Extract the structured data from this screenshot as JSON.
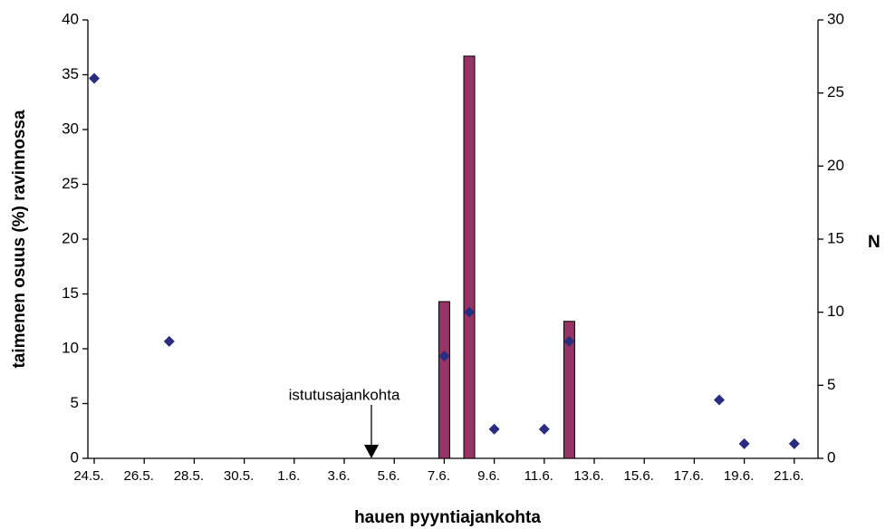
{
  "chart_data": {
    "type": "bar",
    "categories": [
      "24.5.",
      null,
      "26.5.",
      null,
      "28.5.",
      null,
      "30.5.",
      null,
      "1.6.",
      null,
      "3.6.",
      null,
      "5.6.",
      null,
      "7.6.",
      null,
      "9.6.",
      null,
      "11.6.",
      null,
      "13.6.",
      null,
      "15.6.",
      null,
      "17.6.",
      null,
      "19.6.",
      null,
      "21.6."
    ],
    "series": [
      {
        "type": "bar",
        "color": "#993366",
        "values": [
          null,
          null,
          null,
          null,
          null,
          null,
          null,
          null,
          null,
          null,
          null,
          null,
          null,
          null,
          14.3,
          36.7,
          null,
          null,
          null,
          12.5,
          null,
          null,
          null,
          null,
          null,
          null,
          null,
          null,
          null
        ]
      },
      {
        "type": "scatter",
        "axis": "y2",
        "color": "#2b2b80",
        "values": [
          26,
          null,
          null,
          8,
          null,
          null,
          null,
          null,
          null,
          null,
          null,
          null,
          null,
          null,
          7,
          10,
          2,
          null,
          2,
          8,
          null,
          null,
          null,
          null,
          null,
          4,
          1,
          null,
          1
        ]
      }
    ],
    "ylabel": "taimenen osuus (%) ravinnossa",
    "y2label": "N",
    "xlabel": "hauen pyyntiajankohta",
    "annotation": "istutusajankohta",
    "ylim": [
      0,
      40
    ],
    "yticks": [
      0,
      5,
      10,
      15,
      20,
      25,
      30,
      35,
      40
    ],
    "y2lim": [
      0,
      30
    ],
    "y2ticks": [
      0,
      5,
      10,
      15,
      20,
      25,
      30
    ],
    "grid": false
  }
}
